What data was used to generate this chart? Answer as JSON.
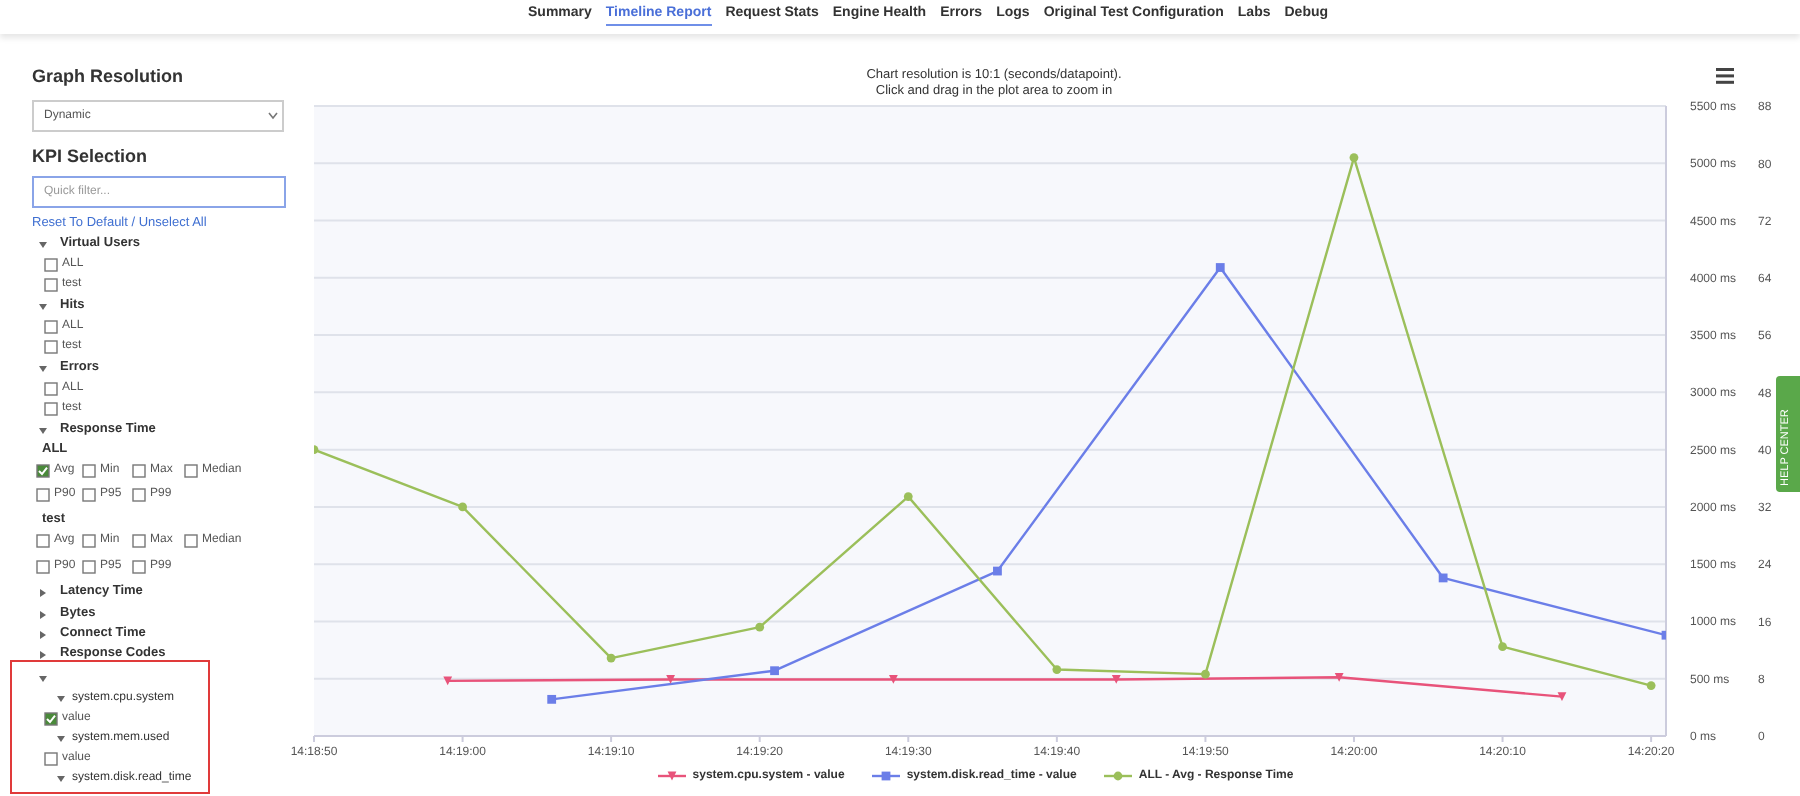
{
  "chart_data": [
    {
      "type": "other",
      "annotations": [
        "Summary",
        "Timeline Report",
        "Request Stats",
        "Engine Health",
        "Errors",
        "Logs",
        "Original Test Configuration",
        "Labs",
        "Debug",
        "HELP CENTER"
      ]
    },
    {
      "type": "other",
      "annotations": [
        "Graph Resolution",
        "Dynamic",
        "KPI Selection",
        "Quick filter...",
        "Reset To Default / Unselect All",
        "Virtual Users",
        "ALL",
        "test",
        "Hits",
        "ALL",
        "test",
        "Errors",
        "ALL",
        "test",
        "Response Time",
        "ALL",
        "Avg",
        "Min",
        "Max",
        "Median",
        "P90",
        "P95",
        "P99",
        "test",
        "Avg",
        "Min",
        "Max",
        "Median",
        "P90",
        "P95",
        "P99",
        "Latency Time",
        "Bytes",
        "Connect Time",
        "Response Codes",
        "system.cpu.system",
        "value",
        "system.mem.used",
        "value",
        "system.disk.read_time"
      ]
    },
    {
      "type": "line",
      "title": "Chart resolution is 10:1 (seconds/datapoint).",
      "subtitle": "Click and drag in the plot area to zoom in",
      "xlim": [
        14.313889,
        14.339167
      ],
      "xticks": [
        {
          "value": 14.313889,
          "label": "14:18:50"
        },
        {
          "value": 14.316667,
          "label": "14:19:00"
        },
        {
          "value": 14.319444,
          "label": "14:19:10"
        },
        {
          "value": 14.322222,
          "label": "14:19:20"
        },
        {
          "value": 14.325,
          "label": "14:19:30"
        },
        {
          "value": 14.327778,
          "label": "14:19:40"
        },
        {
          "value": 14.330556,
          "label": "14:19:50"
        },
        {
          "value": 14.333333,
          "label": "14:20:00"
        },
        {
          "value": 14.336111,
          "label": "14:20:10"
        },
        {
          "value": 14.338889,
          "label": "14:20:20"
        }
      ],
      "ylim": [
        0,
        5500
      ],
      "yticks": [
        {
          "value": 0,
          "label": "0 ms"
        },
        {
          "value": 500,
          "label": "500 ms"
        },
        {
          "value": 1000,
          "label": "1000 ms"
        },
        {
          "value": 1500,
          "label": "1500 ms"
        },
        {
          "value": 2000,
          "label": "2000 ms"
        },
        {
          "value": 2500,
          "label": "2500 ms"
        },
        {
          "value": 3000,
          "label": "3000 ms"
        },
        {
          "value": 3500,
          "label": "3500 ms"
        },
        {
          "value": 4000,
          "label": "4000 ms"
        },
        {
          "value": 4500,
          "label": "4500 ms"
        },
        {
          "value": 5000,
          "label": "5000 ms"
        },
        {
          "value": 5500,
          "label": "5500 ms"
        }
      ],
      "y2lim": [
        0,
        88
      ],
      "y2ticks": [
        0,
        8,
        16,
        24,
        32,
        40,
        48,
        56,
        64,
        72,
        80,
        88
      ],
      "grid": "y",
      "legend": "bottom",
      "line_style": "solid",
      "series": [
        {
          "name": "system.cpu.system - value",
          "color": "#e8537a",
          "axis": "y2",
          "marker": "triangle",
          "x": [
            14.316389,
            14.320556,
            14.324722,
            14.328889,
            14.333056,
            14.337222
          ],
          "values": [
            7.7,
            7.9,
            7.9,
            7.9,
            8.2,
            5.5
          ]
        },
        {
          "name": "system.disk.read_time - value",
          "color": "#6b7ee8",
          "marker": "square",
          "x": [
            14.318333,
            14.3225,
            14.326667,
            14.330833,
            14.335,
            14.339167
          ],
          "values": [
            320,
            570,
            1440,
            4090,
            1380,
            880
          ]
        },
        {
          "name": "ALL - Avg - Response Time",
          "color": "#9bbf5a",
          "marker": "circle",
          "x": [
            14.313889,
            14.316667,
            14.319444,
            14.322222,
            14.325,
            14.327778,
            14.330556,
            14.333333,
            14.336111,
            14.338889
          ],
          "values": [
            2500,
            2000,
            680,
            950,
            2090,
            580,
            540,
            5050,
            780,
            440
          ]
        }
      ]
    }
  ]
}
